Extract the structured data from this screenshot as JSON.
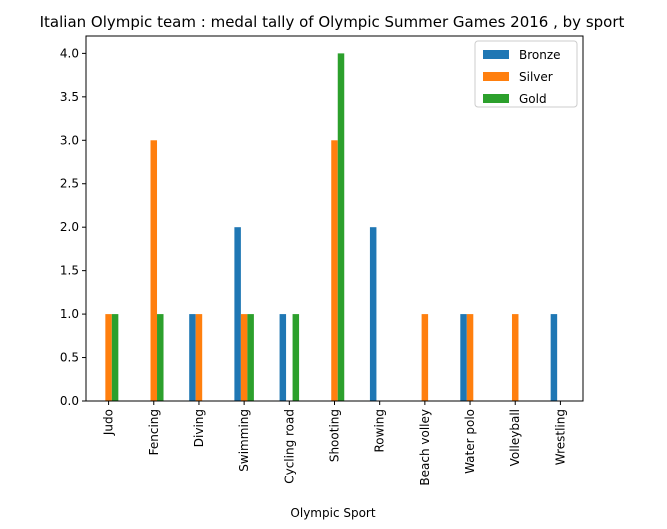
{
  "chart_data": {
    "type": "bar",
    "title": "Italian Olympic team : medal tally of Olympic Summer Games 2016 , by sport",
    "xlabel": "Olympic Sport",
    "ylabel": "",
    "ylim": [
      0,
      4.2
    ],
    "yticks": [
      "0.0",
      "0.5",
      "1.0",
      "1.5",
      "2.0",
      "2.5",
      "3.0",
      "3.5",
      "4.0"
    ],
    "grid": false,
    "legend_position": "top-right",
    "categories": [
      "Judo",
      "Fencing",
      "Diving",
      "Swimming",
      "Cycling road",
      "Shooting",
      "Rowing",
      "Beach volley",
      "Water polo",
      "Volleyball",
      "Wrestling"
    ],
    "series": [
      {
        "name": "Bronze",
        "color": "#1f77b4",
        "values": [
          0,
          0,
          1,
          2,
          1,
          0,
          2,
          0,
          1,
          0,
          1
        ]
      },
      {
        "name": "Silver",
        "color": "#ff7f0e",
        "values": [
          1,
          3,
          1,
          1,
          0,
          3,
          0,
          1,
          1,
          1,
          0
        ]
      },
      {
        "name": "Gold",
        "color": "#2ca02c",
        "values": [
          1,
          1,
          0,
          1,
          1,
          4,
          0,
          0,
          0,
          0,
          0
        ]
      }
    ]
  }
}
